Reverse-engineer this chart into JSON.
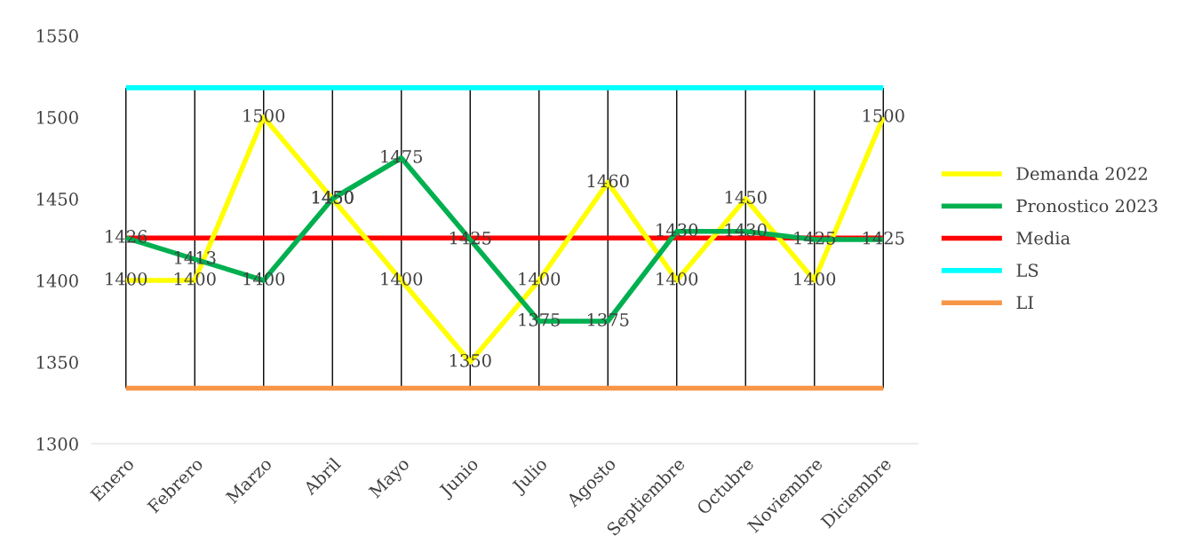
{
  "chart_data": {
    "type": "line",
    "categories": [
      "Enero",
      "Febrero",
      "Marzo",
      "Abril",
      "Mayo",
      "Junio",
      "Julio",
      "Agosto",
      "Septiembre",
      "Octubre",
      "Noviembre",
      "Diciembre"
    ],
    "series": [
      {
        "name": "Demanda 2022",
        "color": "#ffff00",
        "values": [
          1400,
          1400,
          1500,
          1450,
          1400,
          1350,
          1400,
          1460,
          1400,
          1450,
          1400,
          1500
        ],
        "value_labels": [
          "1400",
          "1400",
          "1500",
          "1450",
          "1400",
          "1350",
          "1400",
          "1460",
          "1400",
          "1450",
          "1400",
          "1500"
        ]
      },
      {
        "name": "Pronostico 2023",
        "color": "#00b050",
        "values": [
          1426,
          1413,
          1400,
          1450,
          1475,
          1425,
          1375,
          1375,
          1430,
          1430,
          1425,
          1425
        ],
        "value_labels": [
          "1426",
          "1413",
          "1400",
          "1450",
          "1475",
          "1425",
          "1375",
          "1375",
          "1430",
          "1430",
          "1425",
          "1425"
        ]
      },
      {
        "name": "Media",
        "color": "#ff0000",
        "values": [
          1426,
          1426,
          1426,
          1426,
          1426,
          1426,
          1426,
          1426,
          1426,
          1426,
          1426,
          1426
        ]
      },
      {
        "name": "LS",
        "color": "#00ffff",
        "values": [
          1518,
          1518,
          1518,
          1518,
          1518,
          1518,
          1518,
          1518,
          1518,
          1518,
          1518,
          1518
        ]
      },
      {
        "name": "LI",
        "color": "#f79646",
        "values": [
          1334,
          1334,
          1334,
          1334,
          1334,
          1334,
          1334,
          1334,
          1334,
          1334,
          1334,
          1334
        ]
      }
    ],
    "ylim": [
      1300,
      1550
    ],
    "yticks": [
      1300,
      1350,
      1400,
      1450,
      1500,
      1550
    ],
    "grid": "x",
    "legend": "right",
    "marker": "none",
    "line_style": "solid"
  }
}
